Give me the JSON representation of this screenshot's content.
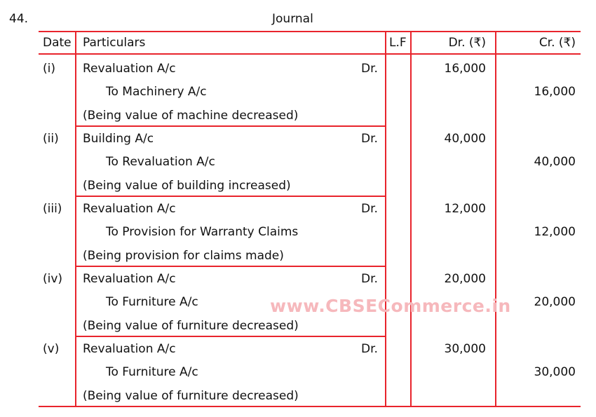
{
  "question_number": "44.",
  "title": "Journal",
  "headers": {
    "date": "Date",
    "particulars": "Particulars",
    "lf": "L.F",
    "dr": "Dr. (₹)",
    "cr": "Cr. (₹)"
  },
  "entries": [
    {
      "date": "(i)",
      "debit_account": "Revaluation A/c",
      "dr_marker": "Dr.",
      "credit_account": "To Machinery A/c",
      "narration": "(Being value of machine decreased)",
      "dr_amount": "16,000",
      "cr_amount": "16,000"
    },
    {
      "date": "(ii)",
      "debit_account": "Building A/c",
      "dr_marker": "Dr.",
      "credit_account": "To Revaluation A/c",
      "narration": "(Being value of building increased)",
      "dr_amount": "40,000",
      "cr_amount": "40,000"
    },
    {
      "date": "(iii)",
      "debit_account": "Revaluation A/c",
      "dr_marker": "Dr.",
      "credit_account": "To Provision for Warranty Claims",
      "narration": "(Being provision for claims made)",
      "dr_amount": "12,000",
      "cr_amount": "12,000"
    },
    {
      "date": "(iv)",
      "debit_account": "Revaluation A/c",
      "dr_marker": "Dr.",
      "credit_account": "To Furniture A/c",
      "narration": "(Being value of furniture decreased)",
      "dr_amount": "20,000",
      "cr_amount": "20,000"
    },
    {
      "date": "(v)",
      "debit_account": "Revaluation A/c",
      "dr_marker": "Dr.",
      "credit_account": "To Furniture A/c",
      "narration": "(Being value of furniture decreased)",
      "dr_amount": "30,000",
      "cr_amount": "30,000"
    }
  ],
  "watermark": "www.CBSECommerce.in",
  "colors": {
    "rule": "#e8242c",
    "watermark": "#f6b8bc"
  }
}
